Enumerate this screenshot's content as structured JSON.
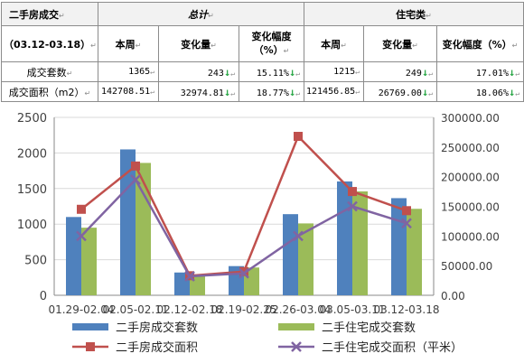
{
  "table": {
    "title": "二手房成交",
    "total_label": "总计",
    "residential_label": "住宅类",
    "period": "（03.12-03.18）",
    "col_week": "本周",
    "col_change": "变化量",
    "col_rate_line1": "变化幅度",
    "col_rate_line2": "（%）",
    "col_rate_full": "变化幅度（%）",
    "rows": [
      {
        "label": "成交套数",
        "total_week": "1365",
        "total_change": "243",
        "total_rate": "15.11%",
        "res_week": "1215",
        "res_change": "249",
        "res_rate": "17.01%"
      },
      {
        "label": "成交面积（m2）",
        "total_week": "142708.51",
        "total_change": "32974.81",
        "total_rate": "18.77%",
        "res_week": "121456.85",
        "res_change": "26769.00",
        "res_rate": "18.06%"
      }
    ],
    "cell_mark": "↵",
    "down_icon": "↓",
    "down_color": "#2ea84a"
  },
  "chart_data": {
    "type": "bar",
    "categories": [
      "01.29-02.04",
      "02.05-02.11",
      "02.12-02.18",
      "02.19-02.25",
      "02.26-03.04",
      "03.05-03.11",
      "03.12-03.18"
    ],
    "y_left": {
      "ticks": [
        "0",
        "500",
        "1000",
        "1500",
        "2000",
        "2500"
      ],
      "ylim": [
        0,
        2500
      ]
    },
    "y_right": {
      "ticks": [
        "0.00",
        "50000.00",
        "100000.00",
        "150000.00",
        "200000.00",
        "250000.00",
        "300000.00"
      ],
      "ylim": [
        0,
        300000
      ]
    },
    "grid": true,
    "legend_position": "bottom",
    "series": [
      {
        "name": "二手房成交套数",
        "kind": "bar",
        "axis": "left",
        "color": "#4f81bd",
        "values": [
          1100,
          2050,
          320,
          410,
          1140,
          1600,
          1365
        ]
      },
      {
        "name": "二手住宅成交套数",
        "kind": "bar",
        "axis": "left",
        "color": "#9bbb59",
        "values": [
          950,
          1860,
          290,
          390,
          1010,
          1460,
          1215
        ]
      },
      {
        "name": "二手房成交面积",
        "kind": "line",
        "marker": "square",
        "axis": "right",
        "color": "#c0504d",
        "values": [
          145000,
          218000,
          33000,
          40000,
          268000,
          175000,
          142708.51
        ]
      },
      {
        "name": "二手住宅成交面积（平米）",
        "kind": "line",
        "marker": "x",
        "axis": "right",
        "color": "#8064a2",
        "values": [
          100000,
          195000,
          32000,
          37000,
          100000,
          150000,
          121456.85
        ]
      }
    ]
  }
}
